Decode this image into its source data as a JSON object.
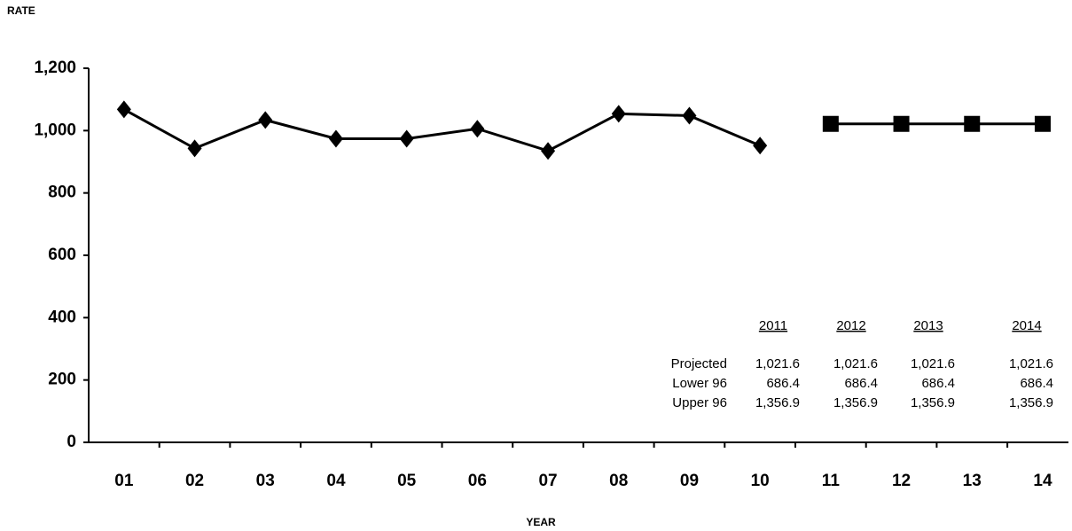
{
  "chart_data": {
    "type": "line",
    "y_label": "RATE",
    "x_label": "YEAR",
    "categories": [
      "01",
      "02",
      "03",
      "04",
      "05",
      "06",
      "07",
      "08",
      "09",
      "10",
      "11",
      "12",
      "13",
      "14"
    ],
    "series": [
      {
        "color": "#000000",
        "marker": "diamond",
        "values": [
          1068,
          943,
          1034,
          974,
          974,
          1006,
          935,
          1054,
          1048,
          952,
          null,
          null,
          null,
          null
        ]
      },
      {
        "color": "#000000",
        "marker": "square",
        "values": [
          null,
          null,
          null,
          null,
          null,
          null,
          null,
          null,
          null,
          null,
          1021.6,
          1021.6,
          1021.6,
          1021.6
        ]
      }
    ],
    "ylim": [
      0,
      1200
    ],
    "yticks": [
      0,
      200,
      400,
      600,
      800,
      {
        "value": 1000,
        "label": "1,000"
      },
      {
        "value": 1200,
        "label": "1,200"
      }
    ],
    "grid": false,
    "table": {
      "columns": [
        "2011",
        "2012",
        "2013",
        "2014"
      ],
      "rows": [
        {
          "label": "Projected",
          "values": [
            "1,021.6",
            "1,021.6",
            "1,021.6",
            "1,021.6"
          ]
        },
        {
          "label": "Lower 96",
          "values": [
            "686.4",
            "686.4",
            "686.4",
            "686.4"
          ]
        },
        {
          "label": "Upper 96",
          "values": [
            "1,356.9",
            "1,356.9",
            "1,356.9",
            "1,356.9"
          ]
        }
      ]
    }
  }
}
